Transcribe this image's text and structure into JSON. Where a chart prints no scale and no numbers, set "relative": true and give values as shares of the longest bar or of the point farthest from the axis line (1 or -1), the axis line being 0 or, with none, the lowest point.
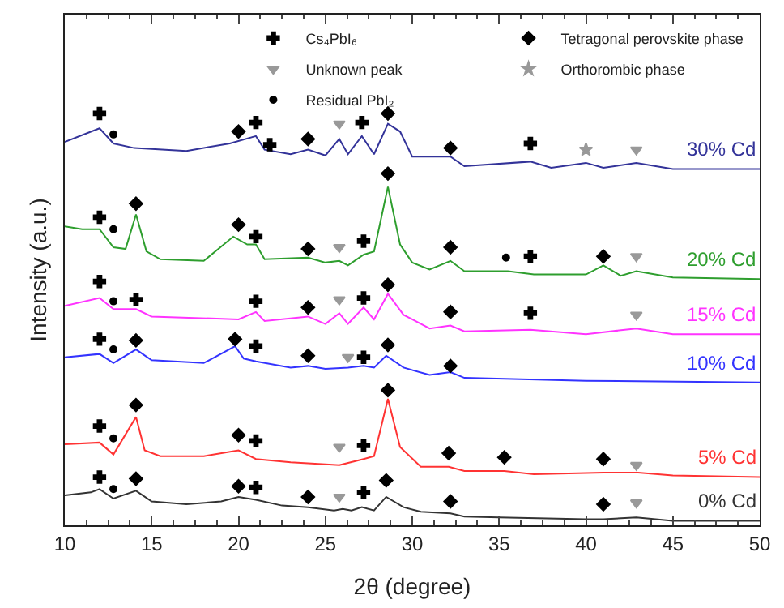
{
  "chart_data": {
    "type": "line",
    "relative": true,
    "xlabel": "2θ (degree)",
    "ylabel": "Intensity (a.u.)",
    "xlim": [
      10,
      50
    ],
    "xticks": [
      10,
      15,
      20,
      25,
      30,
      35,
      40,
      45,
      50
    ],
    "tick_labels": "x",
    "legend": "top right",
    "marker": "none",
    "series": [
      {
        "name": "30% Cd",
        "color": "#333399",
        "x": [
          10,
          12,
          12.8,
          14,
          17,
          19.5,
          21,
          21.5,
          23,
          24,
          25,
          25.8,
          26.3,
          27.1,
          27.8,
          28.6,
          29.3,
          30,
          32.2,
          33,
          36.8,
          38,
          40,
          41,
          42.9,
          45,
          50
        ],
        "values": [
          0.931,
          0.964,
          0.927,
          0.916,
          0.909,
          0.927,
          0.945,
          0.912,
          0.901,
          0.912,
          0.898,
          0.938,
          0.901,
          0.945,
          0.901,
          0.975,
          0.956,
          0.895,
          0.895,
          0.872,
          0.883,
          0.868,
          0.88,
          0.868,
          0.88,
          0.865,
          0.865
        ]
      },
      {
        "name": "20% Cd",
        "color": "#2e9e2e",
        "x": [
          10,
          11,
          12,
          12.8,
          13.5,
          14.1,
          14.7,
          15.5,
          18,
          19.7,
          20.5,
          21,
          21.5,
          24,
          25,
          25.8,
          26.3,
          27.2,
          27.8,
          28.6,
          29.3,
          30,
          31,
          32.2,
          33,
          35.5,
          37,
          40,
          41,
          42,
          42.9,
          45,
          50
        ],
        "values": [
          0.726,
          0.719,
          0.719,
          0.675,
          0.671,
          0.755,
          0.665,
          0.646,
          0.642,
          0.701,
          0.682,
          0.682,
          0.646,
          0.65,
          0.638,
          0.642,
          0.631,
          0.657,
          0.665,
          0.822,
          0.682,
          0.638,
          0.621,
          0.642,
          0.617,
          0.617,
          0.609,
          0.609,
          0.631,
          0.606,
          0.617,
          0.602,
          0.598
        ]
      },
      {
        "name": "15% Cd",
        "color": "#ff33ff",
        "x": [
          10,
          12,
          12.8,
          14.1,
          15,
          20,
          21,
          21.5,
          24,
          25,
          25.8,
          26.3,
          27.2,
          27.8,
          28.6,
          29.5,
          31,
          32.2,
          33,
          36.8,
          40,
          42.9,
          45,
          50
        ],
        "values": [
          0.533,
          0.552,
          0.525,
          0.525,
          0.507,
          0.5,
          0.518,
          0.496,
          0.507,
          0.489,
          0.515,
          0.489,
          0.529,
          0.5,
          0.562,
          0.511,
          0.478,
          0.485,
          0.471,
          0.475,
          0.464,
          0.478,
          0.464,
          0.464
        ]
      },
      {
        "name": "10% Cd",
        "color": "#3333ff",
        "x": [
          10,
          12,
          12.8,
          14.1,
          15,
          18,
          19.8,
          20.3,
          21,
          23,
          24,
          25,
          26.3,
          27.2,
          27.8,
          28.5,
          29.5,
          31,
          32.2,
          33,
          40,
          50
        ],
        "values": [
          0.408,
          0.416,
          0.394,
          0.427,
          0.401,
          0.394,
          0.435,
          0.405,
          0.398,
          0.383,
          0.387,
          0.38,
          0.383,
          0.387,
          0.383,
          0.412,
          0.383,
          0.365,
          0.372,
          0.358,
          0.351,
          0.347
        ]
      },
      {
        "name": "5% Cd",
        "color": "#ff3333",
        "x": [
          10,
          12,
          12.8,
          14.1,
          14.6,
          15.5,
          18,
          20,
          21,
          23,
          25.8,
          27.2,
          27.8,
          28.6,
          29.3,
          30.5,
          32.1,
          33,
          35.3,
          37,
          41,
          43,
          45,
          50
        ],
        "values": [
          0.197,
          0.201,
          0.172,
          0.263,
          0.182,
          0.168,
          0.168,
          0.182,
          0.161,
          0.153,
          0.146,
          0.161,
          0.168,
          0.307,
          0.19,
          0.142,
          0.142,
          0.132,
          0.132,
          0.124,
          0.128,
          0.128,
          0.121,
          0.117
        ]
      },
      {
        "name": "0% Cd",
        "color": "#333333",
        "x": [
          10,
          11.5,
          12,
          12.8,
          14.1,
          15,
          17,
          19,
          20,
          21,
          22.5,
          24,
          25.5,
          26,
          26.5,
          27.1,
          27.8,
          28.5,
          29.5,
          30.5,
          32.2,
          33,
          35,
          40,
          41,
          42.9,
          45,
          50
        ],
        "values": [
          0.073,
          0.08,
          0.088,
          0.065,
          0.084,
          0.058,
          0.051,
          0.058,
          0.069,
          0.062,
          0.048,
          0.044,
          0.036,
          0.04,
          0.036,
          0.044,
          0.036,
          0.069,
          0.044,
          0.033,
          0.029,
          0.021,
          0.019,
          0.015,
          0.015,
          0.019,
          0.011,
          0.011
        ]
      },
      {
        "name": "Cs₄PbI₆",
        "type": "scatter",
        "marker": "cross",
        "color": "#000000",
        "x": [
          12,
          21,
          21.8,
          27.1,
          36.8,
          12,
          21,
          27.2,
          36.8,
          12,
          14.1,
          21,
          27.2,
          36.8,
          12,
          21,
          27.2,
          12,
          21,
          27.2,
          12,
          21,
          27.2
        ],
        "values": [
          1.0,
          0.978,
          0.924,
          0.978,
          0.927,
          0.748,
          0.701,
          0.69,
          0.653,
          0.592,
          0.548,
          0.544,
          0.552,
          0.515,
          0.452,
          0.435,
          0.408,
          0.241,
          0.205,
          0.194,
          0.117,
          0.092,
          0.08
        ]
      },
      {
        "name": "Tetragonal perovskite phase",
        "type": "scatter",
        "marker": "diamond",
        "color": "#000000",
        "x": [
          20,
          24,
          28.6,
          32.2,
          14.1,
          20,
          24,
          28.6,
          32.2,
          41,
          24,
          28.6,
          32.2,
          14.1,
          19.8,
          24,
          28.6,
          32.2,
          14.1,
          20,
          28.6,
          32.1,
          35.3,
          41,
          14.1,
          20,
          24,
          28.5,
          32.2,
          41
        ],
        "values": [
          0.956,
          0.938,
          1.0,
          0.916,
          0.781,
          0.73,
          0.671,
          0.854,
          0.675,
          0.653,
          0.529,
          0.584,
          0.518,
          0.449,
          0.452,
          0.412,
          0.438,
          0.387,
          0.292,
          0.219,
          0.328,
          0.175,
          0.165,
          0.161,
          0.113,
          0.095,
          0.069,
          0.109,
          0.058,
          0.051
        ]
      },
      {
        "name": "Unknown peak",
        "type": "scatter",
        "marker": "triangle",
        "color": "#999999",
        "x": [
          25.8,
          42.9,
          25.8,
          42.9,
          25.8,
          42.9,
          26.3,
          25.8,
          42.9,
          25.8,
          42.9
        ],
        "values": [
          0.975,
          0.912,
          0.675,
          0.653,
          0.548,
          0.511,
          0.408,
          0.19,
          0.146,
          0.069,
          0.055
        ]
      },
      {
        "name": "Orthorombic phase",
        "type": "scatter",
        "marker": "star",
        "color": "#999999",
        "x": [
          40
        ],
        "values": [
          0.912
        ]
      },
      {
        "name": "Residual PbI₂",
        "type": "scatter",
        "marker": "circle",
        "color": "#000000",
        "x": [
          12.8,
          12.8,
          35.4,
          12.8,
          12.8,
          12.8,
          12.8
        ],
        "values": [
          0.949,
          0.719,
          0.65,
          0.544,
          0.427,
          0.211,
          0.088
        ]
      }
    ]
  }
}
